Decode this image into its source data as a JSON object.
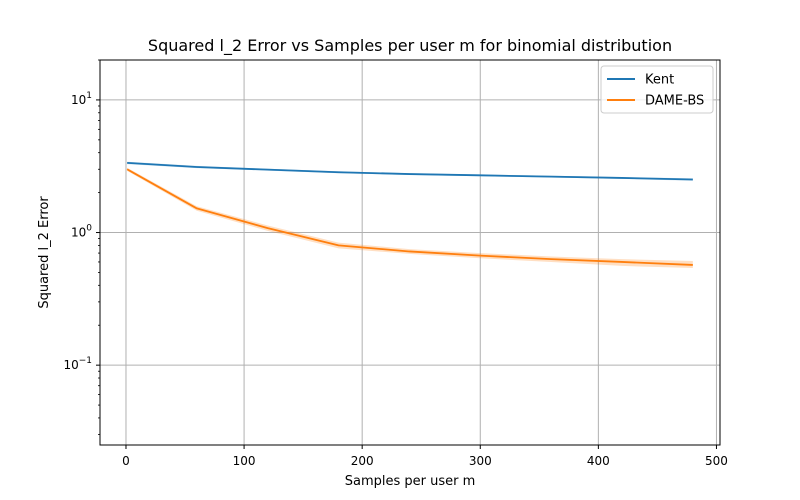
{
  "chart_data": {
    "type": "line",
    "title": "Squared l_2 Error vs Samples per user m for binomial distribution",
    "xlabel": "Samples per user m",
    "ylabel": "Squared l_2 Error",
    "xlim": [
      -22,
      503
    ],
    "ylim": [
      0.025,
      20
    ],
    "yscale": "log",
    "grid": true,
    "legend_position": "top-right",
    "x_ticks": [
      0,
      100,
      200,
      300,
      400,
      500
    ],
    "x_tick_labels": [
      "0",
      "100",
      "200",
      "300",
      "400",
      "500"
    ],
    "y_ticks": [
      0.1,
      1,
      10
    ],
    "y_tick_labels": [
      {
        "base": "10",
        "exp": "−1"
      },
      {
        "base": "10",
        "exp": "0"
      },
      {
        "base": "10",
        "exp": "1"
      }
    ],
    "series": [
      {
        "name": "Kent",
        "color": "#1f77b4",
        "x": [
          1,
          60,
          120,
          180,
          240,
          300,
          360,
          420,
          480
        ],
        "y": [
          3.35,
          3.12,
          2.98,
          2.85,
          2.76,
          2.7,
          2.64,
          2.58,
          2.51
        ],
        "lower": [
          3.28,
          3.06,
          2.93,
          2.8,
          2.72,
          2.66,
          2.6,
          2.54,
          2.46
        ],
        "upper": [
          3.42,
          3.18,
          3.03,
          2.9,
          2.8,
          2.74,
          2.68,
          2.62,
          2.56
        ]
      },
      {
        "name": "DAME-BS",
        "color": "#ff7f0e",
        "x": [
          1,
          60,
          120,
          180,
          240,
          300,
          360,
          420,
          480
        ],
        "y": [
          3.0,
          1.52,
          1.08,
          0.8,
          0.72,
          0.67,
          0.63,
          0.6,
          0.57
        ],
        "lower": [
          2.92,
          1.46,
          1.03,
          0.76,
          0.69,
          0.64,
          0.6,
          0.56,
          0.54
        ],
        "upper": [
          3.08,
          1.58,
          1.13,
          0.84,
          0.75,
          0.7,
          0.66,
          0.63,
          0.61
        ]
      }
    ]
  }
}
